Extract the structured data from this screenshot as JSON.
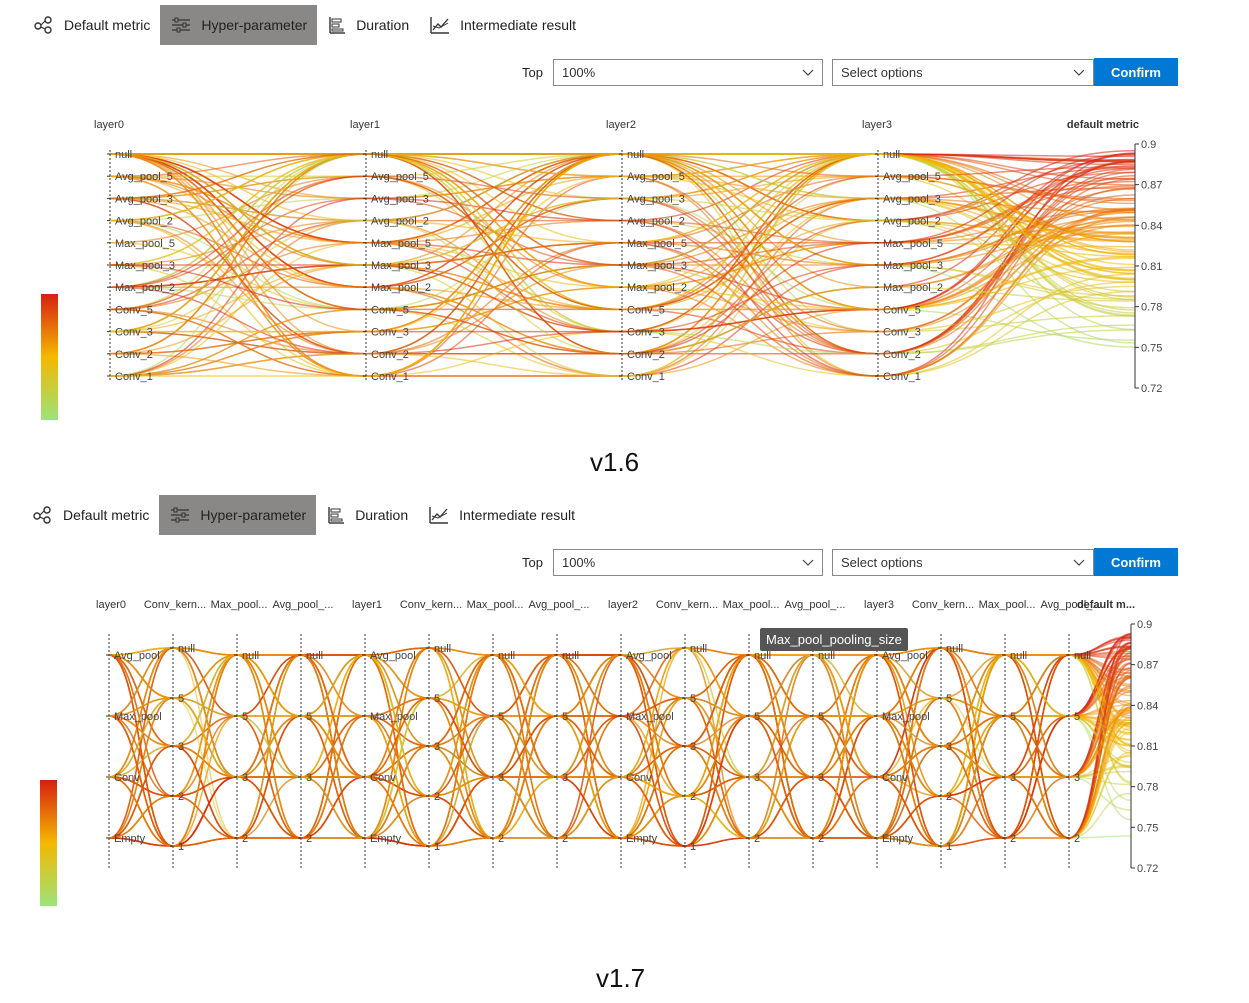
{
  "tabs": [
    {
      "label": "Default metric",
      "icon": "graph-nodes-icon"
    },
    {
      "label": "Hyper-parameter",
      "icon": "sliders-icon"
    },
    {
      "label": "Duration",
      "icon": "bar-list-icon"
    },
    {
      "label": "Intermediate result",
      "icon": "line-trend-icon"
    }
  ],
  "active_tab": "Hyper-parameter",
  "controls": {
    "top_label": "Top",
    "top_value": "100%",
    "options_placeholder": "Select options",
    "confirm_label": "Confirm"
  },
  "colors": {
    "accent": "#0078d4",
    "active_tab": "#8a8886",
    "high": "#d62012",
    "mid": "#f5b800",
    "low": "#9be37a"
  },
  "versions": {
    "first": "v1.6",
    "second": "v1.7"
  },
  "tooltip": "Max_pool_pooling_size",
  "chart_data": [
    {
      "type": "parallel-coordinates",
      "axes": [
        "layer0",
        "layer1",
        "layer2",
        "layer3",
        "default metric"
      ],
      "categories": [
        "null",
        "Avg_pool_5",
        "Avg_pool_3",
        "Avg_pool_2",
        "Max_pool_5",
        "Max_pool_3",
        "Max_pool_2",
        "Conv_5",
        "Conv_3",
        "Conv_2",
        "Conv_1"
      ],
      "metric_ticks": [
        "0.9",
        "0.87",
        "0.84",
        "0.81",
        "0.78",
        "0.75",
        "0.72"
      ],
      "metric_range": [
        0.72,
        0.9
      ],
      "colorscale": [
        "#d62012",
        "#f5b800",
        "#9be37a"
      ]
    },
    {
      "type": "parallel-coordinates",
      "axes": [
        "layer0",
        "Conv_kern...",
        "Max_pool...",
        "Avg_pool_...",
        "layer1",
        "Conv_kern...",
        "Max_pool...",
        "Avg_pool_...",
        "layer2",
        "Conv_kern...",
        "Max_pool...",
        "Avg_pool_...",
        "layer3",
        "Conv_kern...",
        "Max_pool...",
        "Avg_pool_...",
        "default m..."
      ],
      "layer_categories": [
        "Avg_pool",
        "Max_pool",
        "Conv",
        "Empty"
      ],
      "kernel_categories": [
        "null",
        "5",
        "3",
        "2",
        "1"
      ],
      "size_categories": [
        "null",
        "5",
        "3",
        "2"
      ],
      "metric_ticks": [
        "0.9",
        "0.87",
        "0.84",
        "0.81",
        "0.78",
        "0.75",
        "0.72"
      ],
      "metric_range": [
        0.72,
        0.9
      ],
      "colorscale": [
        "#d62012",
        "#f5b800",
        "#9be37a"
      ]
    }
  ]
}
